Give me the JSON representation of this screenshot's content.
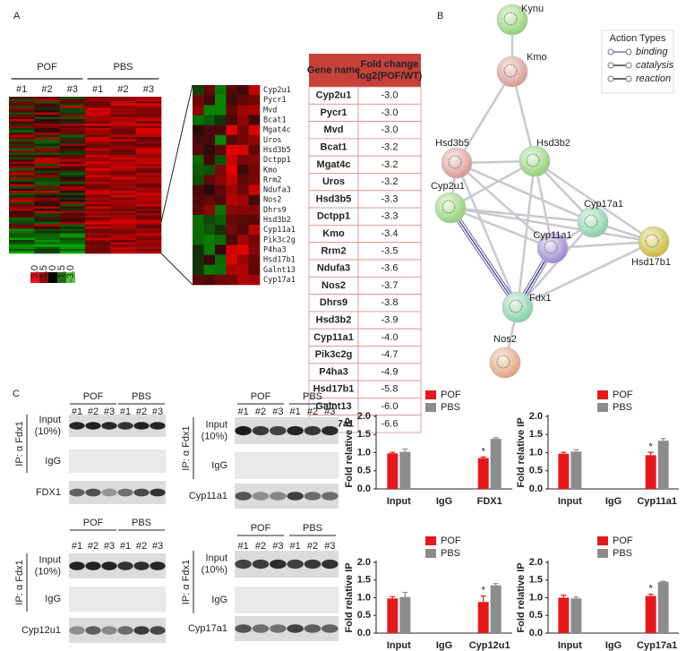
{
  "panel_labels": [
    "A",
    "B",
    "C"
  ],
  "heatmap": {
    "groups": [
      "POF",
      "PBS"
    ],
    "samples": [
      "#1",
      "#2",
      "#3",
      "#1",
      "#2",
      "#3"
    ],
    "scale_labels": [
      "3.0",
      "1.5",
      "0",
      "-1.5",
      "-3.0"
    ],
    "genes": [
      "Cyp2u1",
      "Pycr1",
      "Mvd",
      "Bcat1",
      "Mgat4c",
      "Uros",
      "Hsd3b5",
      "Dctpp1",
      "Kmo",
      "Rrm2",
      "Ndufa3",
      "Nos2",
      "Dhrs9",
      "Hsd3b2",
      "Cyp11a1",
      "Pik3c2g",
      "P4ha3",
      "Hsd17b1",
      "Galnt13",
      "Cyp17a1"
    ]
  },
  "table": {
    "header": {
      "gene": "Gene name",
      "fold": [
        "Fold change",
        "log2(POF/WT)"
      ]
    },
    "rows": [
      [
        "Cyp2u1",
        "-3.0"
      ],
      [
        "Pycr1",
        "-3.0"
      ],
      [
        "Mvd",
        "-3.0"
      ],
      [
        "Bcat1",
        "-3.2"
      ],
      [
        "Mgat4c",
        "-3.2"
      ],
      [
        "Uros",
        "-3.2"
      ],
      [
        "Hsd3b5",
        "-3.3"
      ],
      [
        "Dctpp1",
        "-3.3"
      ],
      [
        "Kmo",
        "-3.4"
      ],
      [
        "Rrm2",
        "-3.5"
      ],
      [
        "Ndufa3",
        "-3.6"
      ],
      [
        "Nos2",
        "-3.7"
      ],
      [
        "Dhrs9",
        "-3.8"
      ],
      [
        "Hsd3b2",
        "-3.9"
      ],
      [
        "Cyp11a1",
        "-4.0"
      ],
      [
        "Pik3c2g",
        "-4.7"
      ],
      [
        "P4ha3",
        "-4.9"
      ],
      [
        "Hsd17b1",
        "-5.8"
      ],
      [
        "Galnt13",
        "-6.0"
      ],
      [
        "Cyp17a1",
        "-6.6"
      ]
    ]
  },
  "network": {
    "nodes": [
      "Kynu",
      "Kmo",
      "Hsd3b5",
      "Hsd3b2",
      "Cyp2u1",
      "Cyp17a1",
      "Cyp11a1",
      "Hsd17b1",
      "Fdx1",
      "Nos2"
    ],
    "legend": {
      "title": "Action Types",
      "items": [
        "binding",
        "catalysis",
        "reaction"
      ]
    }
  },
  "blots": [
    {
      "groups": [
        "POF",
        "PBS"
      ],
      "lanes": [
        "#1",
        "#2",
        "#3",
        "#1",
        "#2",
        "#3"
      ],
      "ip_label": "IP: α Fdx1",
      "rows": [
        [
          "Input",
          "(10%)"
        ],
        [
          "IgG"
        ],
        [
          "FDX1"
        ]
      ]
    },
    {
      "groups": [
        "POF",
        "PBS"
      ],
      "lanes": [
        "#1",
        "#2",
        "#3",
        "#1",
        "#2",
        "#3"
      ],
      "ip_label": "IP: α Fdx1",
      "rows": [
        [
          "Input",
          "(10%)"
        ],
        [
          "IgG"
        ],
        [
          "Cyp11a1"
        ]
      ]
    },
    {
      "groups": [
        "POF",
        "PBS"
      ],
      "lanes": [
        "#1",
        "#2",
        "#3",
        "#1",
        "#2",
        "#3"
      ],
      "ip_label": "IP: α Fdx1",
      "rows": [
        [
          "Input",
          "(10%)"
        ],
        [
          "IgG"
        ],
        [
          "Cyp12u1"
        ]
      ]
    },
    {
      "groups": [
        "POF",
        "PBS"
      ],
      "lanes": [
        "#1",
        "#2",
        "#3",
        "#1",
        "#2",
        "#3"
      ],
      "ip_label": "IP: α Fdx1",
      "rows": [
        [
          "Input",
          "(10%)"
        ],
        [
          "IgG"
        ],
        [
          "Cyp17a1"
        ]
      ]
    }
  ],
  "chart_data": [
    {
      "type": "bar",
      "y_label": "Fold relative IP",
      "categories": [
        "Input",
        "IgG",
        "FDX1"
      ],
      "annotation": "*",
      "series": [
        {
          "name": "POF",
          "color": "#e31a1c",
          "values": [
            0.98,
            null,
            0.85
          ],
          "errors": [
            0.03,
            null,
            0.03
          ]
        },
        {
          "name": "PBS",
          "color": "#8c8c8c",
          "values": [
            1.02,
            null,
            1.38
          ],
          "errors": [
            0.08,
            null,
            0.03
          ]
        }
      ],
      "ylim": [
        0,
        2.0
      ],
      "yticks": [
        {
          "value": 0,
          "label": "0.0"
        },
        {
          "value": 0.5,
          "label": "0.5"
        },
        {
          "value": 1,
          "label": "1.0"
        },
        {
          "value": 1.5,
          "label": "1.5"
        },
        {
          "value": 2,
          "label": "2.0"
        }
      ]
    },
    {
      "type": "bar",
      "y_label": "Fold relative IP",
      "categories": [
        "Input",
        "IgG",
        "Cyp11a1"
      ],
      "annotation": "*",
      "series": [
        {
          "name": "POF",
          "color": "#e31a1c",
          "values": [
            0.97,
            null,
            0.93
          ],
          "errors": [
            0.04,
            null,
            0.08
          ]
        },
        {
          "name": "PBS",
          "color": "#8c8c8c",
          "values": [
            1.03,
            null,
            1.33
          ],
          "errors": [
            0.05,
            null,
            0.06
          ]
        }
      ],
      "ylim": [
        0,
        2.0
      ],
      "yticks": [
        {
          "value": 0,
          "label": "0.0"
        },
        {
          "value": 0.5,
          "label": "0.5"
        },
        {
          "value": 1,
          "label": "1.0"
        },
        {
          "value": 1.5,
          "label": "1.5"
        },
        {
          "value": 2,
          "label": "2.0"
        }
      ]
    },
    {
      "type": "bar",
      "y_label": "Fold relative IP",
      "categories": [
        "Input",
        "IgG",
        "Cyp12u1"
      ],
      "annotation": "*",
      "series": [
        {
          "name": "POF",
          "color": "#e31a1c",
          "values": [
            0.98,
            null,
            0.88
          ],
          "errors": [
            0.05,
            null,
            0.17
          ]
        },
        {
          "name": "PBS",
          "color": "#8c8c8c",
          "values": [
            1.02,
            null,
            1.35
          ],
          "errors": [
            0.13,
            null,
            0.05
          ]
        }
      ],
      "ylim": [
        0,
        2.0
      ],
      "yticks": [
        {
          "value": 0,
          "label": "0.0"
        },
        {
          "value": 0.5,
          "label": "0.5"
        },
        {
          "value": 1,
          "label": "1.0"
        },
        {
          "value": 1.5,
          "label": "1.5"
        },
        {
          "value": 2,
          "label": "2.0"
        }
      ]
    },
    {
      "type": "bar",
      "y_label": "Fold relative IP",
      "categories": [
        "Input",
        "IgG",
        "Cyp17a1"
      ],
      "annotation": "*",
      "series": [
        {
          "name": "POF",
          "color": "#e31a1c",
          "values": [
            1.0,
            null,
            1.05
          ],
          "errors": [
            0.07,
            null,
            0.05
          ]
        },
        {
          "name": "PBS",
          "color": "#8c8c8c",
          "values": [
            0.98,
            null,
            1.45
          ],
          "errors": [
            0.04,
            null,
            0.02
          ]
        }
      ],
      "ylim": [
        0,
        2.0
      ],
      "yticks": [
        {
          "value": 0,
          "label": "0.0"
        },
        {
          "value": 0.5,
          "label": "0.5"
        },
        {
          "value": 1,
          "label": "1.0"
        },
        {
          "value": 1.5,
          "label": "1.5"
        },
        {
          "value": 2,
          "label": "2.0"
        }
      ]
    }
  ]
}
